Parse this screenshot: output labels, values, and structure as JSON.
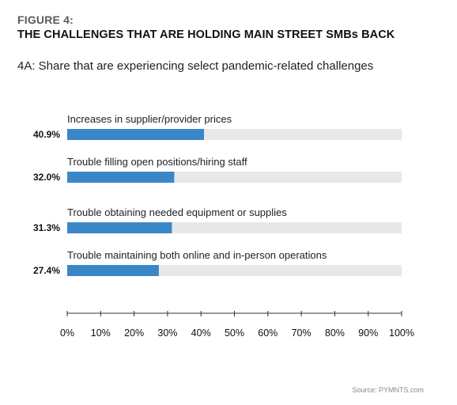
{
  "figure": {
    "label": "FIGURE 4:",
    "title": "THE CHALLENGES THAT ARE HOLDING MAIN STREET SMBs BACK",
    "subtitle": "4A: Share that are experiencing select pandemic-related challenges",
    "source": "Source: PYMNTS.com"
  },
  "colors": {
    "bar": "#3a87c8",
    "track": "#e8e8ea",
    "axis": "#333333"
  },
  "chart_data": {
    "type": "bar",
    "orientation": "horizontal",
    "categories": [
      "Increases in supplier/provider prices",
      "Trouble filling open positions/hiring staff",
      "Trouble obtaining needed equipment or supplies",
      "Trouble maintaining both online and in-person operations"
    ],
    "values": [
      40.9,
      32.0,
      31.3,
      27.4
    ],
    "value_labels": [
      "40.9%",
      "32.0%",
      "31.3%",
      "27.4%"
    ],
    "xlim": [
      0,
      100
    ],
    "xticks": [
      "0%",
      "10%",
      "20%",
      "30%",
      "40%",
      "50%",
      "60%",
      "70%",
      "80%",
      "90%",
      "100%"
    ],
    "grid": false,
    "legend": "none"
  }
}
